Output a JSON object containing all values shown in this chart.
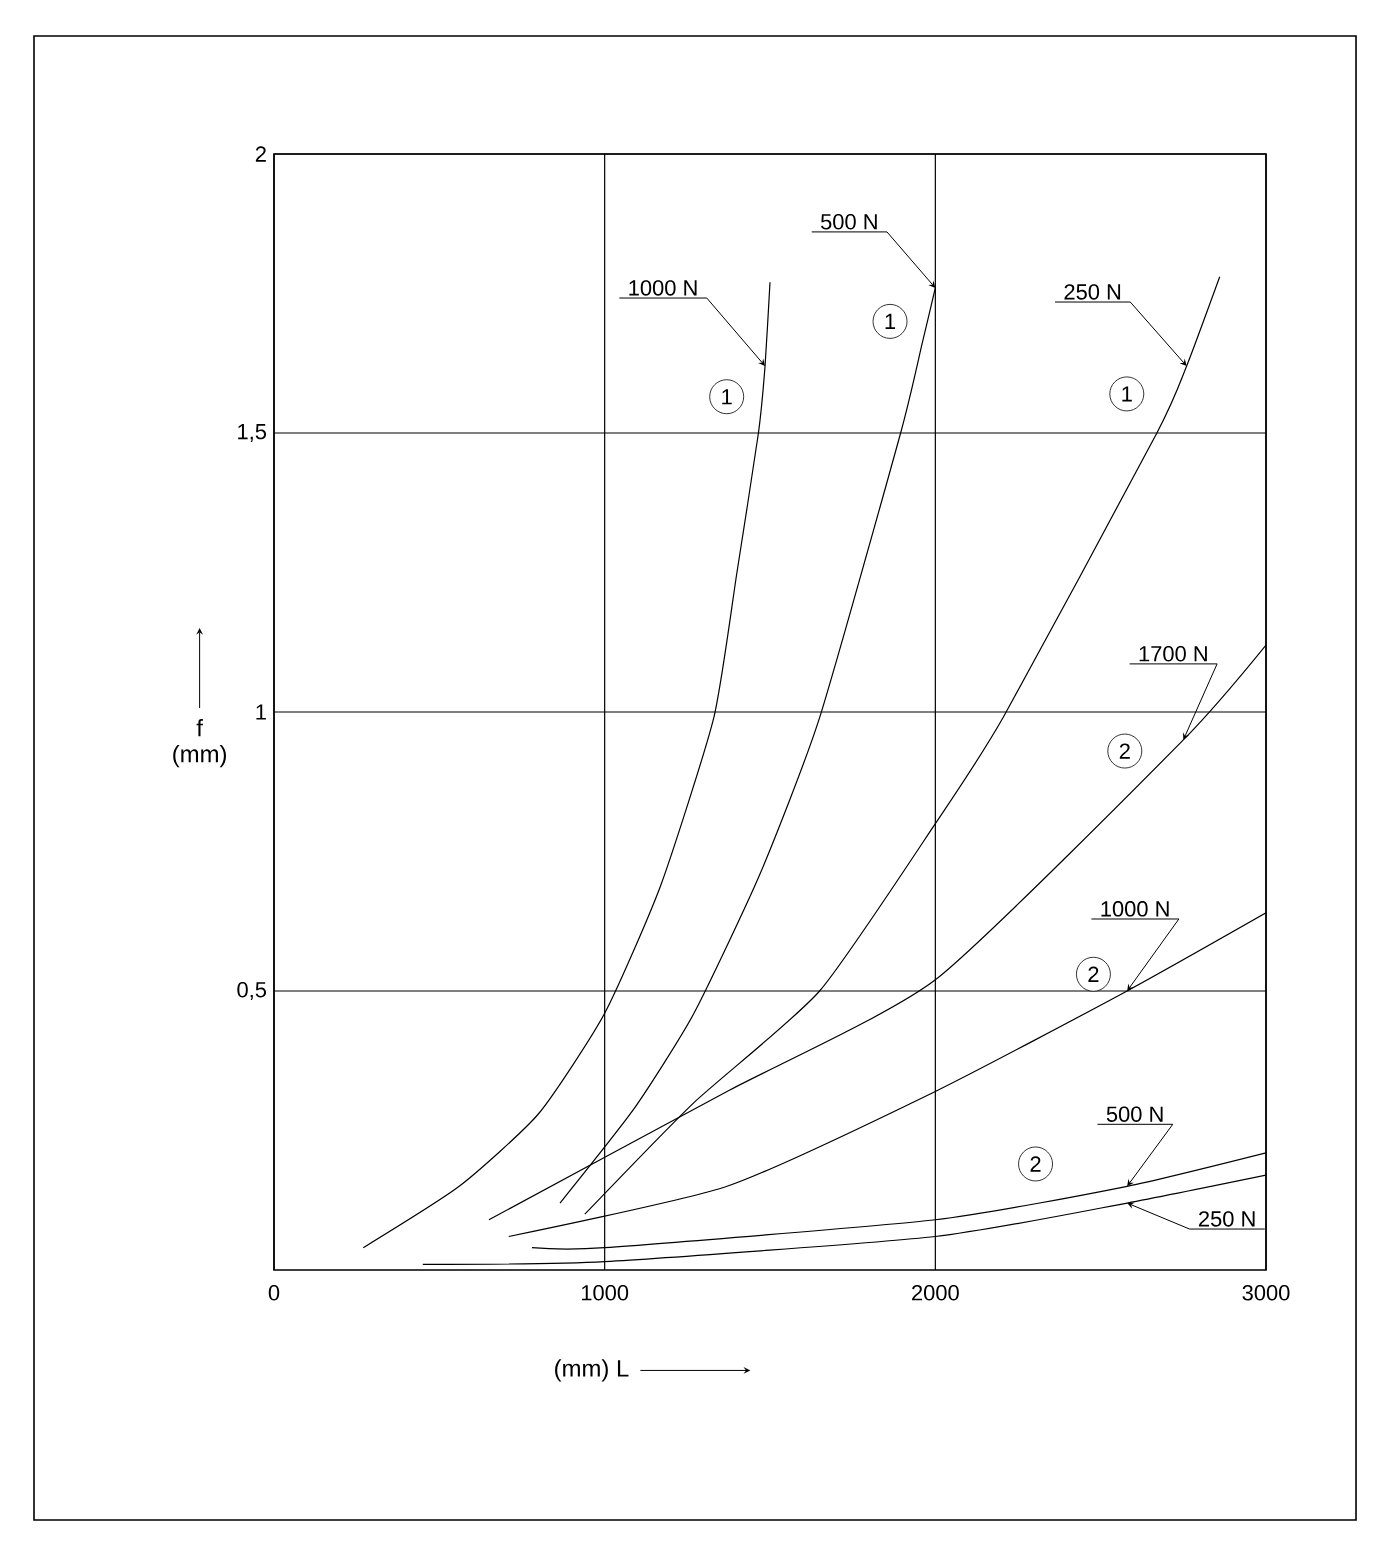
{
  "chart_data": {
    "type": "line",
    "xlabel": "(mm) L",
    "ylabel": "f (mm)",
    "xlim": [
      0,
      3000
    ],
    "ylim": [
      0,
      2
    ],
    "xticks": [
      0,
      1000,
      2000,
      3000
    ],
    "yticks": [
      {
        "value": 0.5,
        "label": "0,5"
      },
      1,
      {
        "value": 1.5,
        "label": "1,5"
      },
      2
    ],
    "grid": true,
    "legend": false,
    "marker": "none",
    "line_style": "solid",
    "series": [
      {
        "name": "1000 N",
        "color": "#000000",
        "x": [
          270,
          560,
          800,
          1000,
          1170,
          1330,
          1400,
          1465,
          1485,
          1500
        ],
        "values": [
          0.04,
          0.15,
          0.28,
          0.46,
          0.69,
          0.99,
          1.25,
          1.5,
          1.62,
          1.77
        ]
      },
      {
        "name": "500 N",
        "color": "#000000",
        "x": [
          865,
          1090,
          1270,
          1470,
          1650,
          1895,
          1960,
          2000
        ],
        "values": [
          0.12,
          0.29,
          0.46,
          0.71,
          0.99,
          1.5,
          1.66,
          1.76
        ]
      },
      {
        "name": "250 N",
        "color": "#000000",
        "x": [
          940,
          1270,
          1650,
          2000,
          2205,
          2670,
          2760,
          2860
        ],
        "values": [
          0.1,
          0.3,
          0.5,
          0.8,
          0.99,
          1.5,
          1.62,
          1.78
        ]
      },
      {
        "name": "1700 N",
        "color": "#000000",
        "x": [
          650,
          1370,
          2000,
          2750,
          3000
        ],
        "values": [
          0.09,
          0.32,
          0.52,
          0.95,
          1.12
        ]
      },
      {
        "name": "1000 N",
        "color": "#000000",
        "x": [
          710,
          1370,
          2000,
          2580,
          3000
        ],
        "values": [
          0.06,
          0.15,
          0.32,
          0.5,
          0.64
        ]
      },
      {
        "name": "500 N",
        "color": "#000000",
        "x": [
          780,
          1000,
          2000,
          2580,
          3000
        ],
        "values": [
          0.04,
          0.04,
          0.09,
          0.15,
          0.21
        ]
      },
      {
        "name": "250 N",
        "color": "#000000",
        "x": [
          450,
          1000,
          2000,
          2580,
          3000
        ],
        "values": [
          0.01,
          0.015,
          0.06,
          0.12,
          0.17
        ]
      }
    ],
    "annotations": [
      {
        "text": "1",
        "x": 1369,
        "y": 1.565
      },
      {
        "text": "1",
        "x": 1863,
        "y": 1.7
      },
      {
        "text": "1",
        "x": 2579,
        "y": 1.57
      },
      {
        "text": "2",
        "x": 2573,
        "y": 0.93
      },
      {
        "text": "2",
        "x": 2478,
        "y": 0.53
      },
      {
        "text": "2",
        "x": 2303,
        "y": 0.19
      }
    ]
  }
}
